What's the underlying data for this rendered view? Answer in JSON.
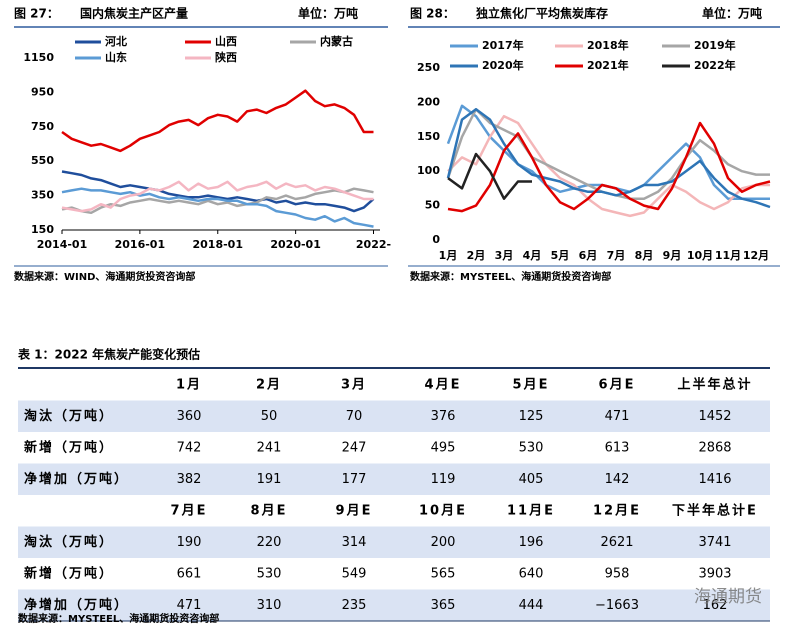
{
  "chart_data": [
    {
      "type": "line",
      "figure": "图 27：",
      "title": "国内焦炭主产区产量",
      "unit": "单位：万吨",
      "source": "数据来源：WIND、海通期货投资咨询部",
      "x": [
        "2014-01",
        "2014-04",
        "2014-07",
        "2014-10",
        "2015-01",
        "2015-04",
        "2015-07",
        "2015-10",
        "2016-01",
        "2016-04",
        "2016-07",
        "2016-10",
        "2017-01",
        "2017-04",
        "2017-07",
        "2017-10",
        "2018-01",
        "2018-04",
        "2018-07",
        "2018-10",
        "2019-01",
        "2019-04",
        "2019-07",
        "2019-10",
        "2020-01",
        "2020-04",
        "2020-07",
        "2020-10",
        "2021-01",
        "2021-04",
        "2021-07",
        "2021-10",
        "2022-01"
      ],
      "xlim": [
        "2014-01",
        "2022-03"
      ],
      "xticks": [
        "2014-01",
        "2016-01",
        "2018-01",
        "2020-01",
        {
          "value": "2022-01",
          "label": "2022-"
        }
      ],
      "ylim": [
        150,
        1150
      ],
      "yticks": [
        150,
        350,
        550,
        750,
        950,
        1150
      ],
      "series": [
        {
          "name": "河北",
          "color": "#1f4e9c",
          "values": [
            490,
            480,
            470,
            450,
            440,
            420,
            400,
            410,
            400,
            390,
            380,
            360,
            350,
            340,
            340,
            350,
            340,
            330,
            340,
            330,
            320,
            330,
            310,
            320,
            300,
            310,
            300,
            300,
            290,
            280,
            260,
            280,
            330
          ]
        },
        {
          "name": "山西",
          "color": "#e00000",
          "values": [
            720,
            680,
            660,
            640,
            650,
            630,
            610,
            640,
            680,
            700,
            720,
            760,
            780,
            790,
            760,
            800,
            820,
            810,
            780,
            840,
            850,
            830,
            860,
            880,
            920,
            960,
            900,
            870,
            880,
            860,
            820,
            720,
            720
          ]
        },
        {
          "name": "内蒙古",
          "color": "#a6a6a6",
          "values": [
            270,
            280,
            260,
            250,
            280,
            300,
            290,
            310,
            320,
            330,
            320,
            310,
            320,
            310,
            300,
            320,
            300,
            310,
            290,
            300,
            310,
            340,
            330,
            350,
            330,
            340,
            360,
            370,
            380,
            370,
            390,
            380,
            370
          ]
        },
        {
          "name": "山东",
          "color": "#5b9bd5",
          "values": [
            370,
            380,
            390,
            380,
            380,
            370,
            360,
            370,
            350,
            360,
            340,
            330,
            340,
            330,
            320,
            330,
            330,
            320,
            320,
            300,
            300,
            290,
            260,
            250,
            240,
            220,
            210,
            230,
            200,
            220,
            190,
            180,
            170
          ]
        },
        {
          "name": "陕西",
          "color": "#f4b6c2",
          "values": [
            280,
            270,
            260,
            270,
            300,
            280,
            330,
            350,
            360,
            390,
            380,
            400,
            430,
            380,
            420,
            390,
            400,
            430,
            380,
            400,
            410,
            430,
            390,
            420,
            400,
            410,
            380,
            400,
            390,
            370,
            350,
            330,
            330
          ]
        }
      ]
    },
    {
      "type": "line",
      "figure": "图 28：",
      "title": "独立焦化厂平均焦炭库存",
      "unit": "单位：万吨",
      "source": "数据来源：MYSTEEL、海通期货投资咨询部",
      "categories": [
        "1月",
        null,
        "2月",
        null,
        "3月",
        null,
        "4月",
        null,
        "5月",
        null,
        "6月",
        null,
        "7月",
        null,
        "8月",
        null,
        "9月",
        null,
        "10月",
        null,
        "11月",
        null,
        "12月",
        null
      ],
      "ylim": [
        0,
        250
      ],
      "yticks": [
        0,
        50,
        100,
        150,
        200,
        250
      ],
      "series": [
        {
          "name": "2017年",
          "color": "#5b9bd5",
          "values": [
            140,
            195,
            180,
            150,
            130,
            110,
            100,
            80,
            70,
            75,
            80,
            80,
            75,
            70,
            80,
            100,
            120,
            140,
            120,
            80,
            60,
            60,
            60,
            60
          ]
        },
        {
          "name": "2018年",
          "color": "#f4b6b8",
          "values": [
            100,
            120,
            110,
            150,
            180,
            170,
            140,
            110,
            90,
            80,
            60,
            45,
            40,
            35,
            40,
            60,
            80,
            70,
            55,
            45,
            55,
            75,
            80,
            80
          ]
        },
        {
          "name": "2019年",
          "color": "#a6a6a6",
          "values": [
            90,
            150,
            190,
            170,
            160,
            150,
            120,
            110,
            100,
            90,
            80,
            70,
            65,
            60,
            60,
            70,
            90,
            120,
            145,
            130,
            110,
            100,
            95,
            95
          ]
        },
        {
          "name": "2020年",
          "color": "#2e75b6",
          "values": [
            90,
            175,
            190,
            175,
            140,
            110,
            95,
            90,
            85,
            75,
            70,
            70,
            65,
            70,
            80,
            80,
            85,
            100,
            115,
            90,
            70,
            60,
            55,
            48
          ]
        },
        {
          "name": "2021年",
          "color": "#e00000",
          "values": [
            45,
            42,
            50,
            80,
            130,
            155,
            120,
            80,
            55,
            45,
            60,
            80,
            75,
            60,
            50,
            45,
            75,
            120,
            170,
            140,
            90,
            70,
            80,
            85
          ]
        },
        {
          "name": "2022年",
          "color": "#222222",
          "values": [
            90,
            75,
            125,
            100,
            60,
            85,
            85,
            null,
            null,
            null,
            null,
            null,
            null,
            null,
            null,
            null,
            null,
            null,
            null,
            null,
            null,
            null,
            null,
            null
          ]
        }
      ]
    }
  ],
  "table": {
    "title": "表 1：2022 年焦炭产能变化预估",
    "source": "数据来源：MYSTEEL、海通期货投资咨询部",
    "watermark": "海通期货",
    "rows": [
      [
        "",
        "1月",
        "2月",
        "3月",
        "4月E",
        "5月E",
        "6月E",
        "上半年总计"
      ],
      [
        "淘汰（万吨）",
        "360",
        "50",
        "70",
        "376",
        "125",
        "471",
        "1452"
      ],
      [
        "新增（万吨）",
        "742",
        "241",
        "247",
        "495",
        "530",
        "613",
        "2868"
      ],
      [
        "净增加（万吨）",
        "382",
        "191",
        "177",
        "119",
        "405",
        "142",
        "1416"
      ],
      [
        "",
        "7月E",
        "8月E",
        "9月E",
        "10月E",
        "11月E",
        "12月E",
        "下半年总计E"
      ],
      [
        "淘汰（万吨）",
        "190",
        "220",
        "314",
        "200",
        "196",
        "2621",
        "3741"
      ],
      [
        "新增（万吨）",
        "661",
        "530",
        "549",
        "565",
        "640",
        "958",
        "3903"
      ],
      [
        "净增加（万吨）",
        "471",
        "310",
        "235",
        "365",
        "444",
        "−1663",
        "162"
      ]
    ]
  }
}
